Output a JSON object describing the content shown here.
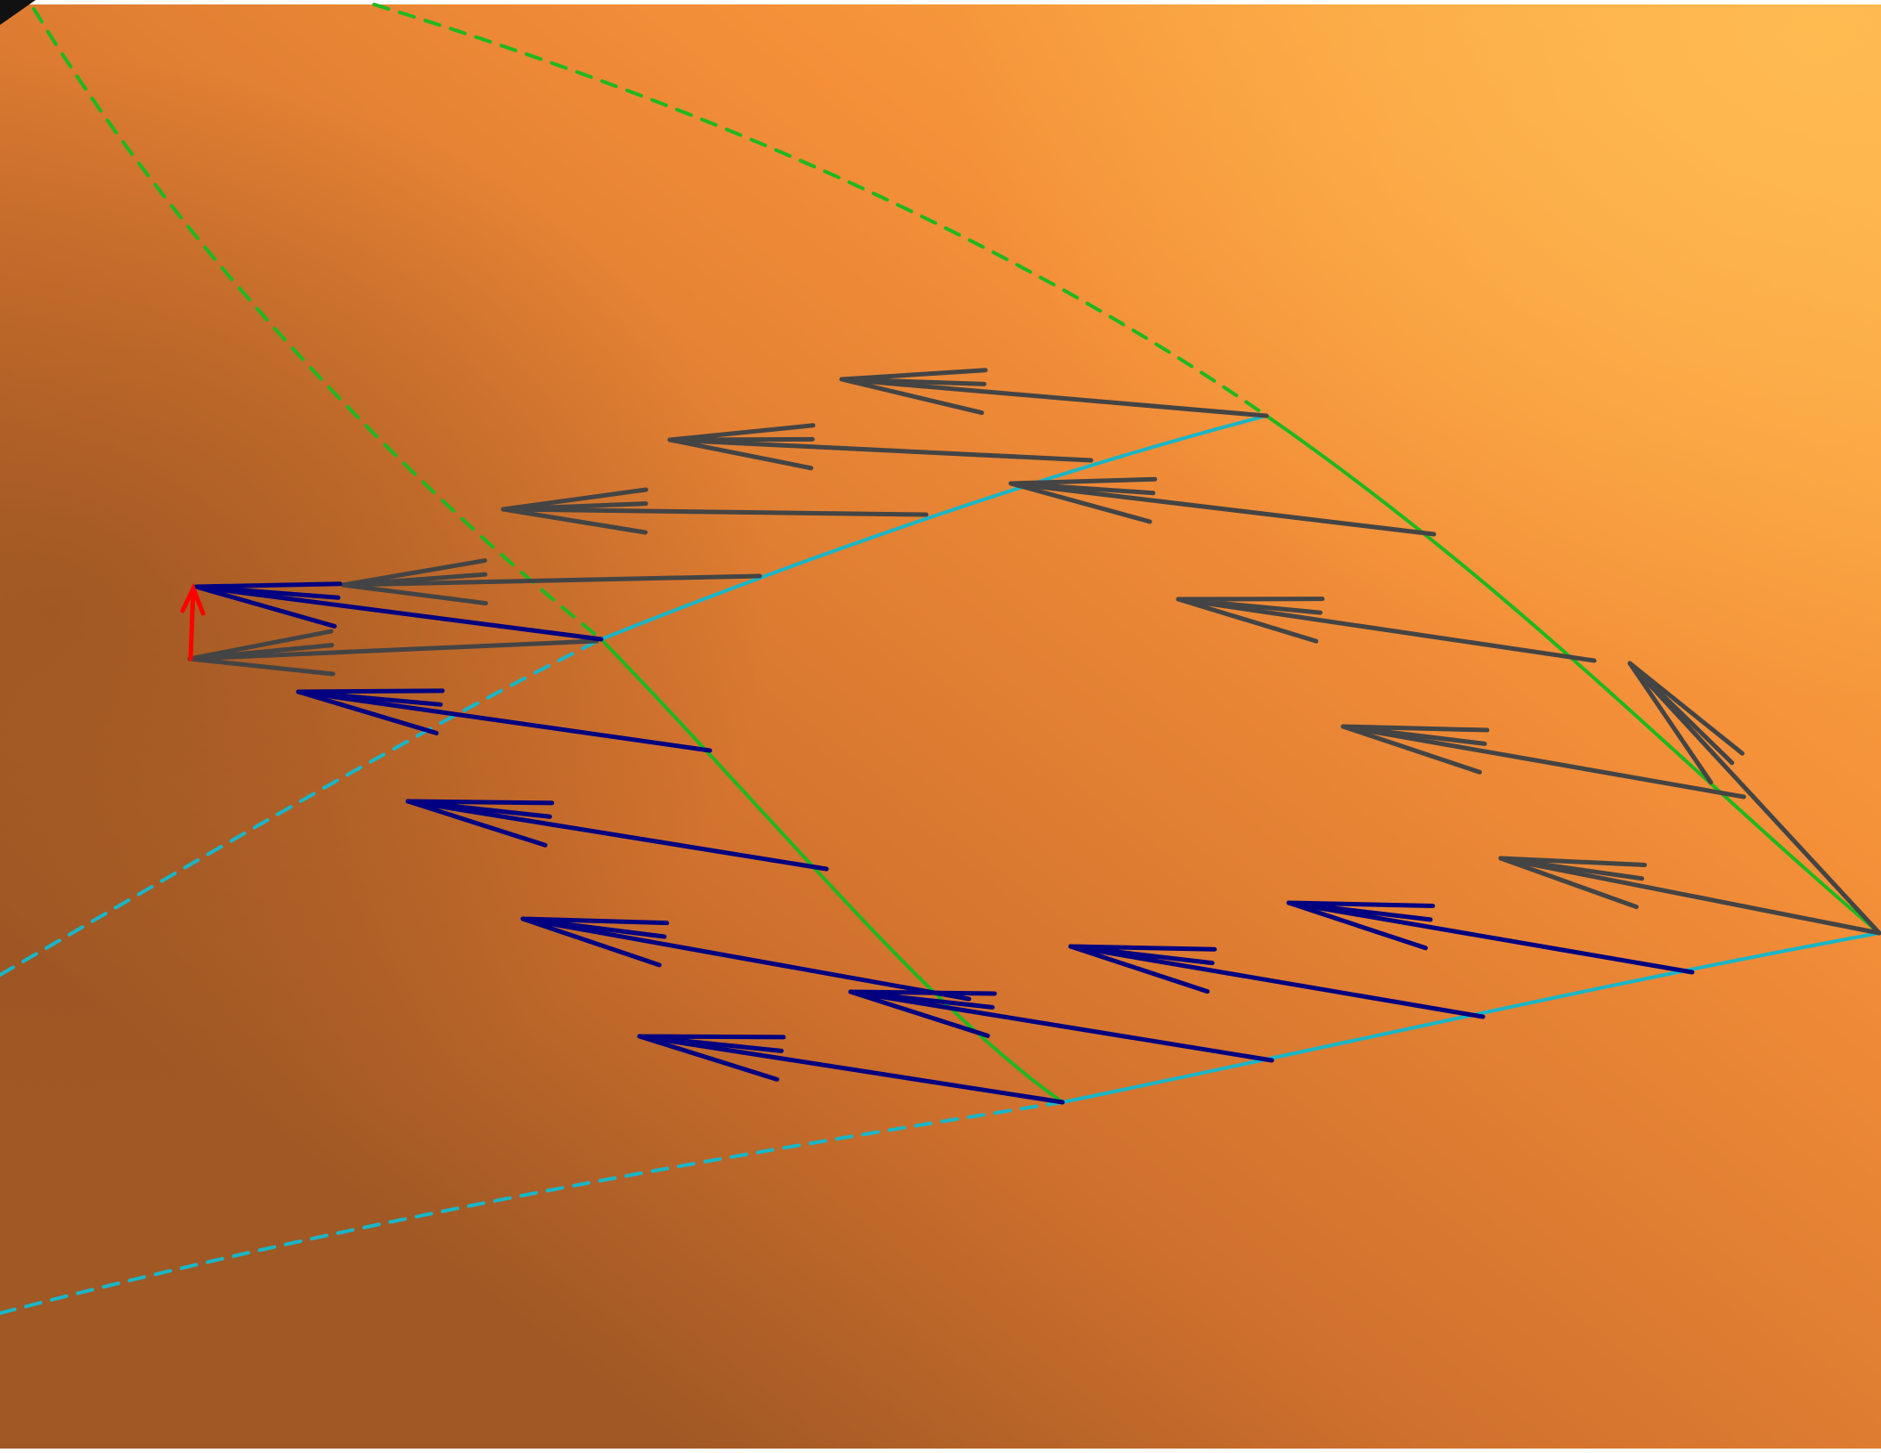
{
  "scene": {
    "surface_colors": {
      "highlight": "#ffb347",
      "mid": "#f08a35",
      "shadow": "#a05824",
      "white_border": "#ffffff"
    },
    "curve_colors": {
      "u_parameter_line": "#1fb81f",
      "v_parameter_line": "#19b6c8",
      "gray_vectors": "#444444",
      "blue_vectors": "#000080",
      "normal_vector": "#ff0000",
      "corner_mark": "#111111"
    },
    "icons": [
      "surface-patch",
      "tangent-vector-field",
      "normal-vector-arrow",
      "parameter-curves"
    ]
  }
}
